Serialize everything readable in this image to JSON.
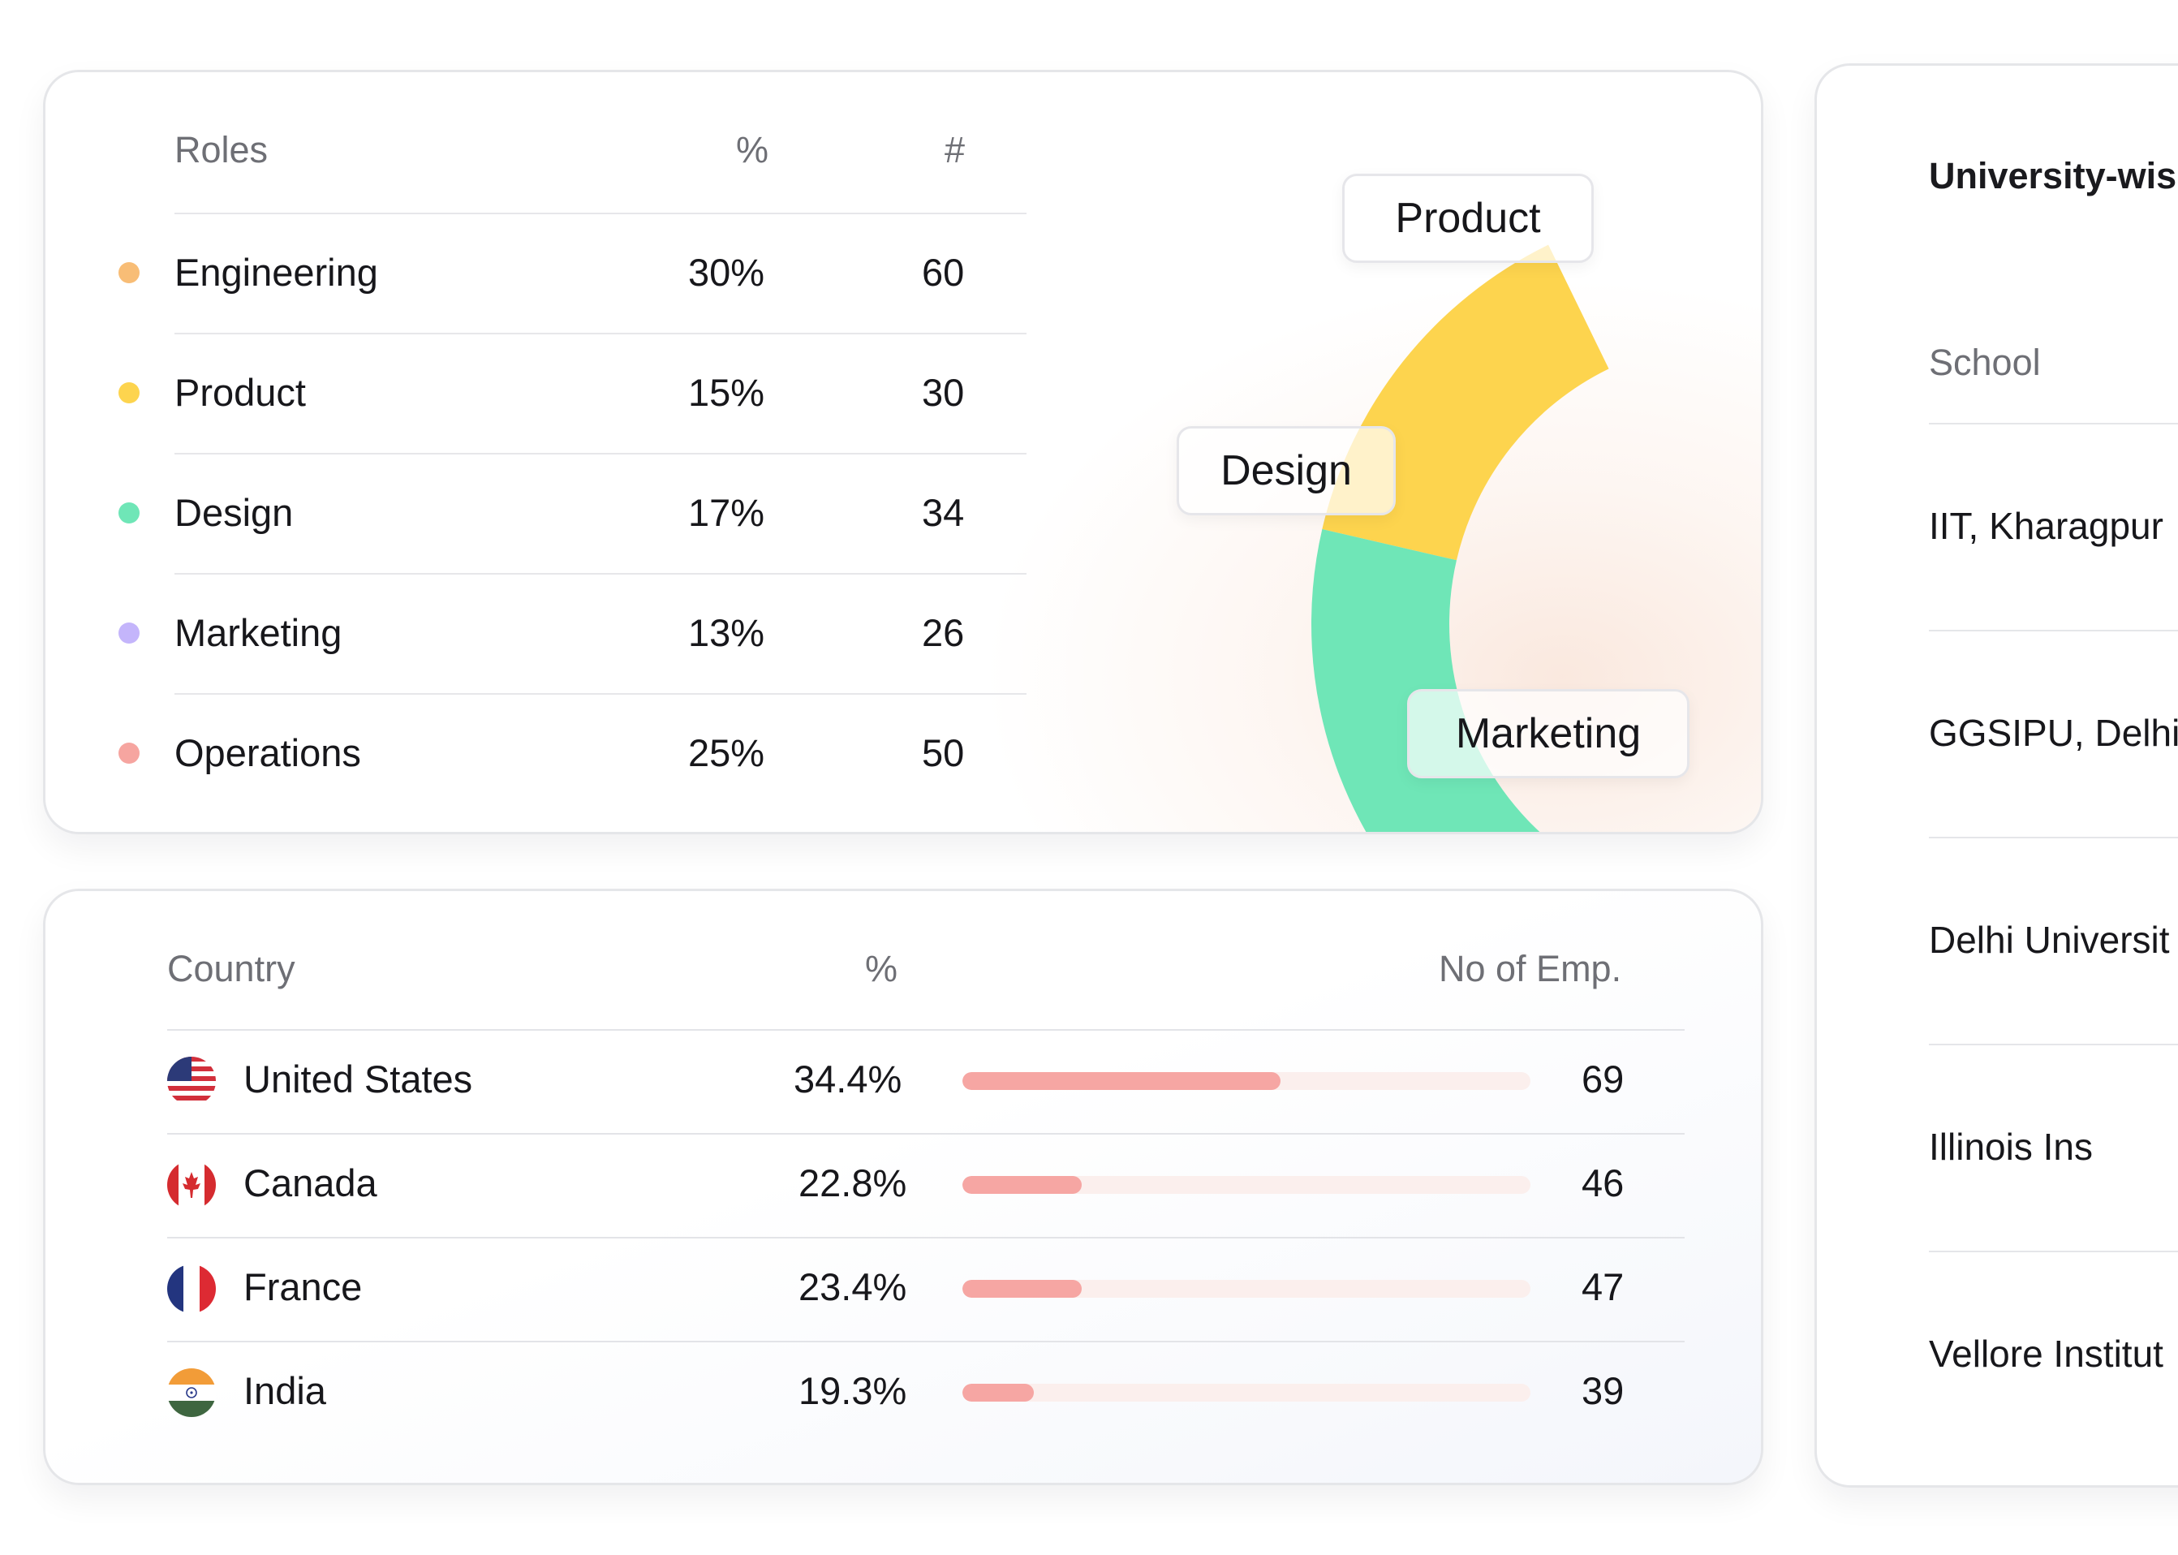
{
  "roles": {
    "headers": {
      "role": "Roles",
      "percent": "%",
      "count": "#"
    },
    "rows": [
      {
        "name": "Engineering",
        "percent": "30%",
        "count": "60",
        "color": "#f8bd76"
      },
      {
        "name": "Product",
        "percent": "15%",
        "count": "30",
        "color": "#fdd44e"
      },
      {
        "name": "Design",
        "percent": "17%",
        "count": "34",
        "color": "#6fe6b7"
      },
      {
        "name": "Marketing",
        "percent": "13%",
        "count": "26",
        "color": "#c4b5fb"
      },
      {
        "name": "Operations",
        "percent": "25%",
        "count": "50",
        "color": "#f6a5a0"
      }
    ],
    "donut_labels": {
      "product": "Product",
      "design": "Design",
      "marketing": "Marketing"
    }
  },
  "countries": {
    "headers": {
      "country": "Country",
      "percent": "%",
      "employees": "No of Emp."
    },
    "rows": [
      {
        "name": "United States",
        "percent": "34.4%",
        "count": "69",
        "bar_fraction": 0.56,
        "flag": "us-flag-icon"
      },
      {
        "name": "Canada",
        "percent": "22.8%",
        "count": "46",
        "bar_fraction": 0.21,
        "flag": "canada-flag-icon"
      },
      {
        "name": "France",
        "percent": "23.4%",
        "count": "47",
        "bar_fraction": 0.21,
        "flag": "france-flag-icon"
      },
      {
        "name": "India",
        "percent": "19.3%",
        "count": "39",
        "bar_fraction": 0.125,
        "flag": "india-flag-icon"
      }
    ],
    "bar_color": "#f6a6a3",
    "bar_track_color": "#fbefed"
  },
  "university": {
    "title": "University-wis",
    "header": "School",
    "rows": [
      "IIT, Kharagpur",
      "GGSIPU, Delhi",
      "Delhi Universit",
      "Illinois Ins",
      "Vellore Institut"
    ]
  }
}
